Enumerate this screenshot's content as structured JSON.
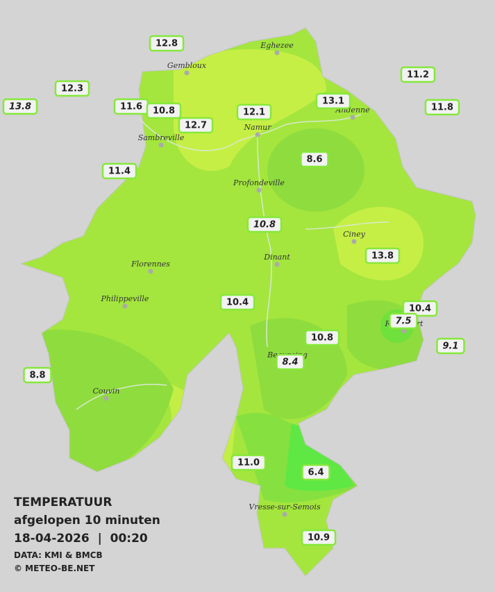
{
  "title": {
    "heading": "TEMPERATUUR",
    "subheading": "afgelopen 10 minuten",
    "datetime": "18-04-2026  |  00:20",
    "source": "DATA: KMI & BMCB",
    "copyright": "© METEO-BE.NET"
  },
  "cities": [
    "Eghezee",
    "Gembloux",
    "Andenne",
    "Namur",
    "Sambreville",
    "Profondeville",
    "Ciney",
    "Dinant",
    "Florennes",
    "Philippeville",
    "Rochefort",
    "Beauraing",
    "Couvin",
    "Vresse-sur-Semois"
  ],
  "stations": [
    {
      "label": "12.8",
      "italic": false
    },
    {
      "label": "12.3",
      "italic": false
    },
    {
      "label": "13.8",
      "italic": true
    },
    {
      "label": "11.6",
      "italic": false
    },
    {
      "label": "10.8",
      "italic": false
    },
    {
      "label": "12.7",
      "italic": false
    },
    {
      "label": "12.1",
      "italic": false
    },
    {
      "label": "13.1",
      "italic": false
    },
    {
      "label": "11.2",
      "italic": false
    },
    {
      "label": "11.8",
      "italic": false
    },
    {
      "label": "8.6",
      "italic": false
    },
    {
      "label": "11.4",
      "italic": false
    },
    {
      "label": "10.8",
      "italic": true
    },
    {
      "label": "13.8",
      "italic": false
    },
    {
      "label": "10.4",
      "italic": false
    },
    {
      "label": "10.4",
      "italic": false
    },
    {
      "label": "7.5",
      "italic": true
    },
    {
      "label": "9.1",
      "italic": true
    },
    {
      "label": "10.8",
      "italic": false
    },
    {
      "label": "8.4",
      "italic": true
    },
    {
      "label": "8.8",
      "italic": false
    },
    {
      "label": "11.0",
      "italic": false
    },
    {
      "label": "6.4",
      "italic": false
    },
    {
      "label": "10.9",
      "italic": false
    }
  ]
}
